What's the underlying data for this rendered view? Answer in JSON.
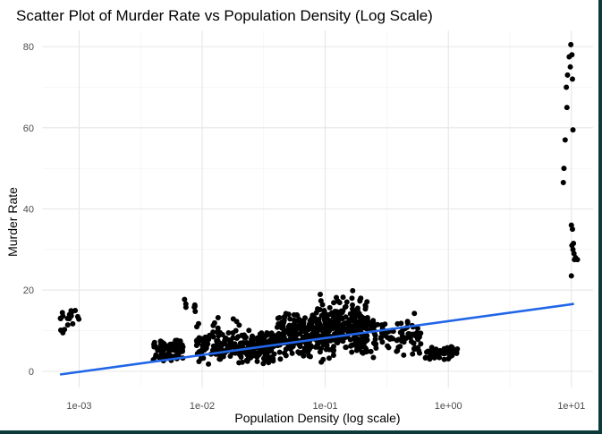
{
  "chart_data": {
    "type": "scatter",
    "title": "Scatter Plot of Murder Rate vs Population Density (Log Scale)",
    "xlabel": "Population Density (log scale)",
    "ylabel": "Murder Rate",
    "x_scale": "log10",
    "xlim": [
      0.0005,
      15
    ],
    "ylim": [
      -4,
      84
    ],
    "x_ticks": [
      0.001,
      0.01,
      0.1,
      1,
      10
    ],
    "x_tick_labels": [
      "1e-03",
      "1e-02",
      "1e-01",
      "1e+00",
      "1e+01"
    ],
    "y_ticks": [
      0,
      20,
      40,
      60,
      80
    ],
    "y_tick_labels": [
      "0",
      "20",
      "40",
      "60",
      "80"
    ],
    "grid": true,
    "point_color": "#000000",
    "trend_color": "#2166e8",
    "trend_line": {
      "x": [
        0.0007,
        10.5
      ],
      "y": [
        -0.8,
        16.6
      ]
    },
    "clusters": [
      {
        "x_range": [
          0.0007,
          0.001
        ],
        "y_range": [
          6,
          18.5
        ],
        "count": 20
      },
      {
        "x_range": [
          0.004,
          0.007
        ],
        "y_range": [
          1,
          9
        ],
        "count": 70
      },
      {
        "x_range": [
          0.006,
          0.009
        ],
        "y_range": [
          12,
          20
        ],
        "count": 7
      },
      {
        "x_range": [
          0.009,
          0.02
        ],
        "y_range": [
          0,
          14
        ],
        "count": 110
      },
      {
        "x_range": [
          0.02,
          0.04
        ],
        "y_range": [
          1,
          11
        ],
        "count": 160
      },
      {
        "x_range": [
          0.04,
          0.09
        ],
        "y_range": [
          1,
          17
        ],
        "count": 220
      },
      {
        "x_range": [
          0.09,
          0.22
        ],
        "y_range": [
          1,
          20.5
        ],
        "count": 260
      },
      {
        "x_range": [
          0.22,
          0.6
        ],
        "y_range": [
          2,
          16
        ],
        "count": 90
      },
      {
        "x_range": [
          0.65,
          1.2
        ],
        "y_range": [
          2,
          7
        ],
        "count": 60
      }
    ],
    "points": [
      {
        "x": 9.9,
        "y": 80.5
      },
      {
        "x": 10.1,
        "y": 78.0
      },
      {
        "x": 9.6,
        "y": 77.5
      },
      {
        "x": 9.8,
        "y": 75.0
      },
      {
        "x": 9.3,
        "y": 73.0
      },
      {
        "x": 10.2,
        "y": 72.0
      },
      {
        "x": 9.1,
        "y": 70.0
      },
      {
        "x": 9.2,
        "y": 65.0
      },
      {
        "x": 10.3,
        "y": 59.5
      },
      {
        "x": 8.9,
        "y": 57.0
      },
      {
        "x": 8.7,
        "y": 50.0
      },
      {
        "x": 8.6,
        "y": 46.5
      },
      {
        "x": 10.0,
        "y": 36.0
      },
      {
        "x": 10.2,
        "y": 35.0
      },
      {
        "x": 10.4,
        "y": 31.5
      },
      {
        "x": 10.1,
        "y": 31.0
      },
      {
        "x": 10.3,
        "y": 30.0
      },
      {
        "x": 10.5,
        "y": 29.0
      },
      {
        "x": 10.8,
        "y": 28.0
      },
      {
        "x": 11.2,
        "y": 27.5
      },
      {
        "x": 10.6,
        "y": 27.5
      },
      {
        "x": 10.0,
        "y": 23.5
      }
    ]
  }
}
